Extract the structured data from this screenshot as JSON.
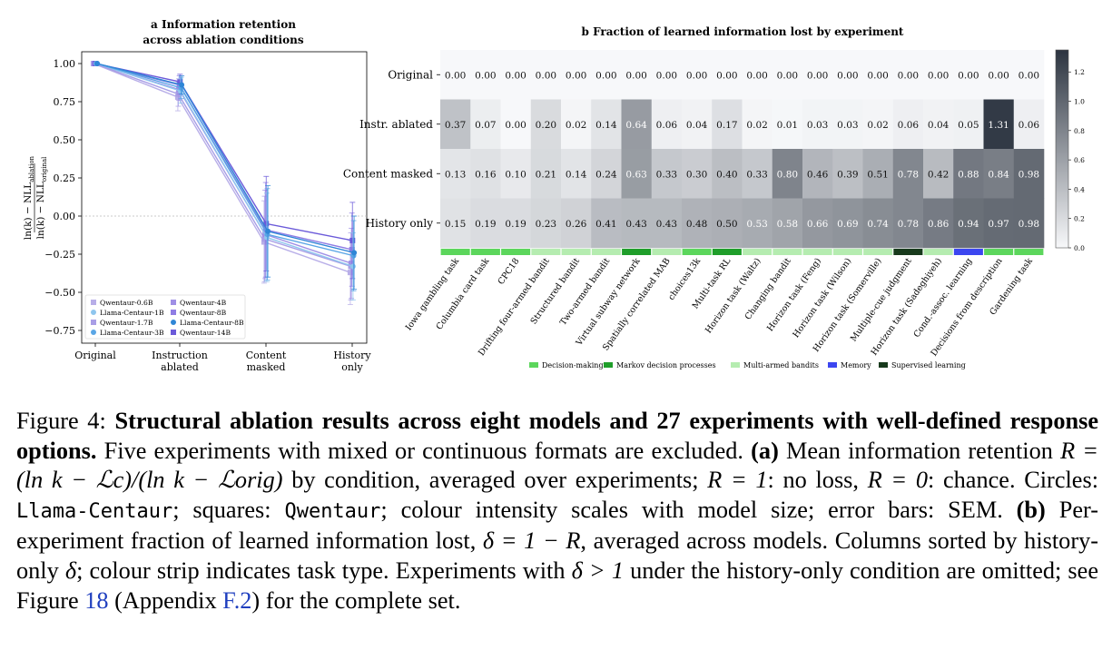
{
  "panel_a": {
    "title_line1": "a  Information retention",
    "title_line2": "across ablation conditions",
    "ylabel_top": "ln(k) − NLL",
    "ylabel_top_sub": "ablation",
    "ylabel_bottom": "ln(k) − NLL",
    "ylabel_bottom_sub": "original",
    "yticks": [
      "1.00",
      "0.75",
      "0.50",
      "0.25",
      "0.00",
      "−0.25",
      "−0.50",
      "−0.75"
    ],
    "xticks": [
      [
        "Original"
      ],
      [
        "Instruction",
        "ablated"
      ],
      [
        "Content",
        "masked"
      ],
      [
        "History",
        "only"
      ]
    ],
    "legend": [
      {
        "name": "Qwentaur-0.6B",
        "marker": "square",
        "color": "#b8aee8"
      },
      {
        "name": "Qwentaur-4B",
        "marker": "square",
        "color": "#9f8fe6"
      },
      {
        "name": "Llama-Centaur-1B",
        "marker": "circle",
        "color": "#8fc6ee"
      },
      {
        "name": "Qwentaur-8B",
        "marker": "square",
        "color": "#8f7de4"
      },
      {
        "name": "Qwentaur-1.7B",
        "marker": "square",
        "color": "#a99ee6"
      },
      {
        "name": "Llama-Centaur-8B",
        "marker": "circle",
        "color": "#2f86d6"
      },
      {
        "name": "Llama-Centaur-3B",
        "marker": "circle",
        "color": "#5aa6e6"
      },
      {
        "name": "Qwentaur-14B",
        "marker": "square",
        "color": "#6b5ad9"
      }
    ]
  },
  "panel_b": {
    "title": "b  Fraction of learned information lost by experiment",
    "row_labels": [
      "Original",
      "Instr. ablated",
      "Content masked",
      "History only"
    ],
    "colorbar_ticks": [
      "0.0",
      "0.2",
      "0.4",
      "0.6",
      "0.8",
      "1.0",
      "1.2"
    ],
    "legend": [
      {
        "name": "Decision-making",
        "color": "#5cd65c"
      },
      {
        "name": "Markov decision processes",
        "color": "#1f9e2a"
      },
      {
        "name": "Multi-armed bandits",
        "color": "#b5ecb0"
      },
      {
        "name": "Memory",
        "color": "#3c46f0"
      },
      {
        "name": "Supervised learning",
        "color": "#183a1c"
      }
    ]
  },
  "chart_data": [
    {
      "type": "line",
      "title": "a  Information retention across ablation conditions",
      "ylabel": "(ln(k) − NLL_ablation) / (ln(k) − NLL_original)",
      "xlabel": "",
      "categories": [
        "Original",
        "Instruction ablated",
        "Content masked",
        "History only"
      ],
      "ylim": [
        -0.8,
        1.05
      ],
      "grid": false,
      "legend_position": "bottom-left",
      "series": [
        {
          "name": "Qwentaur-0.6B",
          "marker": "square",
          "color": "#b8aee8",
          "values": [
            1.0,
            0.78,
            -0.17,
            -0.37
          ],
          "sem": [
            0.0,
            0.09,
            0.27,
            0.21
          ]
        },
        {
          "name": "Qwentaur-1.7B",
          "marker": "square",
          "color": "#a99ee6",
          "values": [
            1.0,
            0.8,
            -0.15,
            -0.33
          ],
          "sem": [
            0.0,
            0.08,
            0.28,
            0.22
          ]
        },
        {
          "name": "Qwentaur-4B",
          "marker": "square",
          "color": "#9f8fe6",
          "values": [
            1.0,
            0.83,
            -0.12,
            -0.31
          ],
          "sem": [
            0.0,
            0.07,
            0.29,
            0.23
          ]
        },
        {
          "name": "Qwentaur-8B",
          "marker": "square",
          "color": "#8f7de4",
          "values": [
            1.0,
            0.86,
            -0.09,
            -0.22
          ],
          "sem": [
            0.0,
            0.06,
            0.31,
            0.24
          ]
        },
        {
          "name": "Qwentaur-14B",
          "marker": "square",
          "color": "#6b5ad9",
          "values": [
            1.0,
            0.88,
            -0.05,
            -0.16
          ],
          "sem": [
            0.0,
            0.05,
            0.31,
            0.25
          ]
        },
        {
          "name": "Llama-Centaur-1B",
          "marker": "circle",
          "color": "#8fc6ee",
          "values": [
            1.0,
            0.82,
            -0.14,
            -0.33
          ],
          "sem": [
            0.0,
            0.08,
            0.29,
            0.22
          ]
        },
        {
          "name": "Llama-Centaur-3B",
          "marker": "circle",
          "color": "#5aa6e6",
          "values": [
            1.0,
            0.84,
            -0.12,
            -0.26
          ],
          "sem": [
            0.0,
            0.07,
            0.3,
            0.23
          ]
        },
        {
          "name": "Llama-Centaur-8B",
          "marker": "circle",
          "color": "#2f86d6",
          "values": [
            1.0,
            0.86,
            -0.1,
            -0.24
          ],
          "sem": [
            0.0,
            0.06,
            0.3,
            0.24
          ]
        }
      ]
    },
    {
      "type": "heatmap",
      "title": "b  Fraction of learned information lost by experiment",
      "rows": [
        "Original",
        "Instr. ablated",
        "Content masked",
        "History only"
      ],
      "columns": [
        "Iowa gambling task",
        "Columbia card task",
        "CPC18",
        "Drifting four-armed bandit",
        "Structured bandit",
        "Two-armed bandit",
        "Virtual subway network",
        "Spatially correlated MAB",
        "choices13k",
        "Multi-task RL",
        "Horizon task (Waltz)",
        "Changing bandit",
        "Horizon task (Feng)",
        "Horizon task (Wilson)",
        "Horizon task (Somerville)",
        "Multiple-cue judgment",
        "Horizon task (Sadeghiyeh)",
        "Cond.-assoc. learning",
        "Decisions from description",
        "Gardening task"
      ],
      "column_task_type": [
        "Decision-making",
        "Decision-making",
        "Decision-making",
        "Multi-armed bandits",
        "Multi-armed bandits",
        "Multi-armed bandits",
        "Markov decision processes",
        "Multi-armed bandits",
        "Decision-making",
        "Markov decision processes",
        "Multi-armed bandits",
        "Multi-armed bandits",
        "Multi-armed bandits",
        "Multi-armed bandits",
        "Multi-armed bandits",
        "Supervised learning",
        "Multi-armed bandits",
        "Memory",
        "Decision-making",
        "Decision-making"
      ],
      "values": [
        [
          "0.00",
          "0.00",
          "0.00",
          "0.00",
          "0.00",
          "0.00",
          "0.00",
          "0.00",
          "0.00",
          "0.00",
          "0.00",
          "0.00",
          "0.00",
          "0.00",
          "0.00",
          "0.00",
          "0.00",
          "0.00",
          "0.00",
          "0.00"
        ],
        [
          "0.37",
          "0.07",
          "0.00",
          "0.20",
          "0.02",
          "0.14",
          "0.64",
          "0.06",
          "0.04",
          "0.17",
          "0.02",
          "0.01",
          "0.03",
          "0.03",
          "0.02",
          "0.06",
          "0.04",
          "0.05",
          "1.31",
          "0.06"
        ],
        [
          "0.13",
          "0.16",
          "0.10",
          "0.21",
          "0.14",
          "0.24",
          "0.63",
          "0.33",
          "0.30",
          "0.40",
          "0.33",
          "0.80",
          "0.46",
          "0.39",
          "0.51",
          "0.78",
          "0.42",
          "0.88",
          "0.84",
          "0.98"
        ],
        [
          "0.15",
          "0.19",
          "0.19",
          "0.23",
          "0.26",
          "0.41",
          "0.43",
          "0.43",
          "0.48",
          "0.50",
          "0.53",
          "0.58",
          "0.66",
          "0.69",
          "0.74",
          "0.78",
          "0.86",
          "0.94",
          "0.97",
          "0.98"
        ]
      ],
      "colorbar_range": [
        0.0,
        1.35
      ]
    }
  ],
  "caption": {
    "label": "Figure 4:",
    "title": "Structural ablation results across eight models and 27 experiments with well-defined response options.",
    "s1": "Five experiments with mixed or continuous formats are excluded.",
    "a_label": "(a)",
    "a_text1": "Mean information retention",
    "formula_R": "R = (ln k − ℒc)/(ln k − ℒorig)",
    "a_text2": "by condition, averaged over experiments;",
    "r1": "R = 1",
    "a_text3": ": no loss,",
    "r0": "R = 0",
    "a_text4": ": chance. Circles:",
    "mono1": "Llama-Centaur",
    "a_text5": "; squares:",
    "mono2": "Qwentaur",
    "a_text6": "; colour intensity scales with model size; error bars: SEM.",
    "b_label": "(b)",
    "b_text1": "Per-experiment fraction of learned information lost,",
    "delta_def": "δ = 1 − R",
    "b_text2": ", averaged across models. Columns sorted by history-only",
    "delta": "δ",
    "b_text3": "; colour strip indicates task type. Experiments with",
    "delta_gt": "δ > 1",
    "b_text4": "under the history-only condition are omitted; see Figure",
    "ref_fig": "18",
    "b_text5": "(Appendix",
    "ref_app": "F.2",
    "b_text6": ") for the complete set."
  }
}
